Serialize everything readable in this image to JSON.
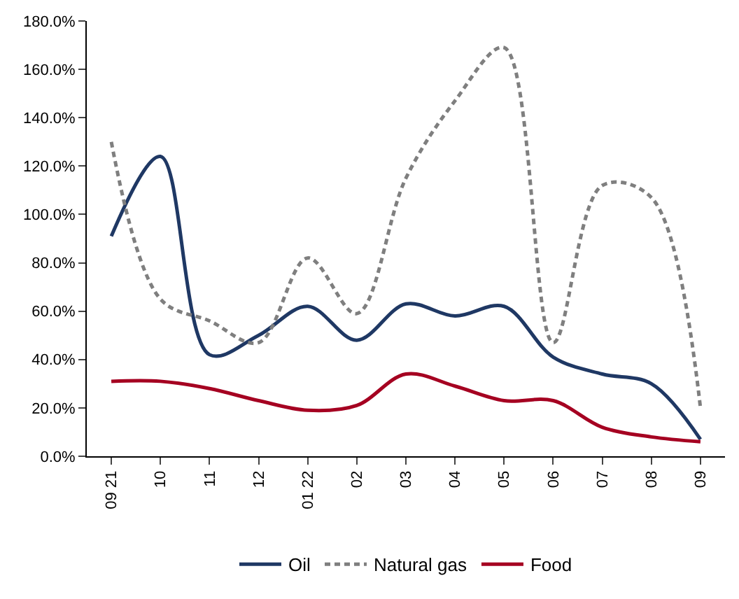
{
  "chart_data": {
    "type": "line",
    "categories": [
      "09 21",
      "10",
      "11",
      "12",
      "01 22",
      "02",
      "03",
      "04",
      "05",
      "06",
      "07",
      "08",
      "09"
    ],
    "series": [
      {
        "name": "Oil",
        "color": "#1f3864",
        "line_style": "solid",
        "values": [
          91,
          124,
          42,
          50,
          62,
          48,
          63,
          58,
          62,
          41,
          34,
          30,
          7
        ]
      },
      {
        "name": "Natural gas",
        "color": "#7f7f7f",
        "line_style": "dashed",
        "values": [
          130,
          65,
          56,
          47,
          82,
          59,
          115,
          147,
          169,
          47,
          112,
          107,
          20
        ]
      },
      {
        "name": "Food",
        "color": "#a50021",
        "line_style": "solid",
        "values": [
          31,
          31,
          28,
          23,
          19,
          21,
          34,
          29,
          23,
          23,
          12,
          8,
          6
        ]
      }
    ],
    "ylim": [
      0,
      180
    ],
    "yticks": [
      {
        "value": 0,
        "label": "0.0%"
      },
      {
        "value": 20,
        "label": "20.0%"
      },
      {
        "value": 40,
        "label": "40.0%"
      },
      {
        "value": 60,
        "label": "60.0%"
      },
      {
        "value": 80,
        "label": "80.0%"
      },
      {
        "value": 100,
        "label": "100.0%"
      },
      {
        "value": 120,
        "label": "120.0%"
      },
      {
        "value": 140,
        "label": "140.0%"
      },
      {
        "value": 160,
        "label": "160.0%"
      },
      {
        "value": 180,
        "label": "180.0%"
      }
    ],
    "legend": "bottom",
    "marker": "none"
  }
}
